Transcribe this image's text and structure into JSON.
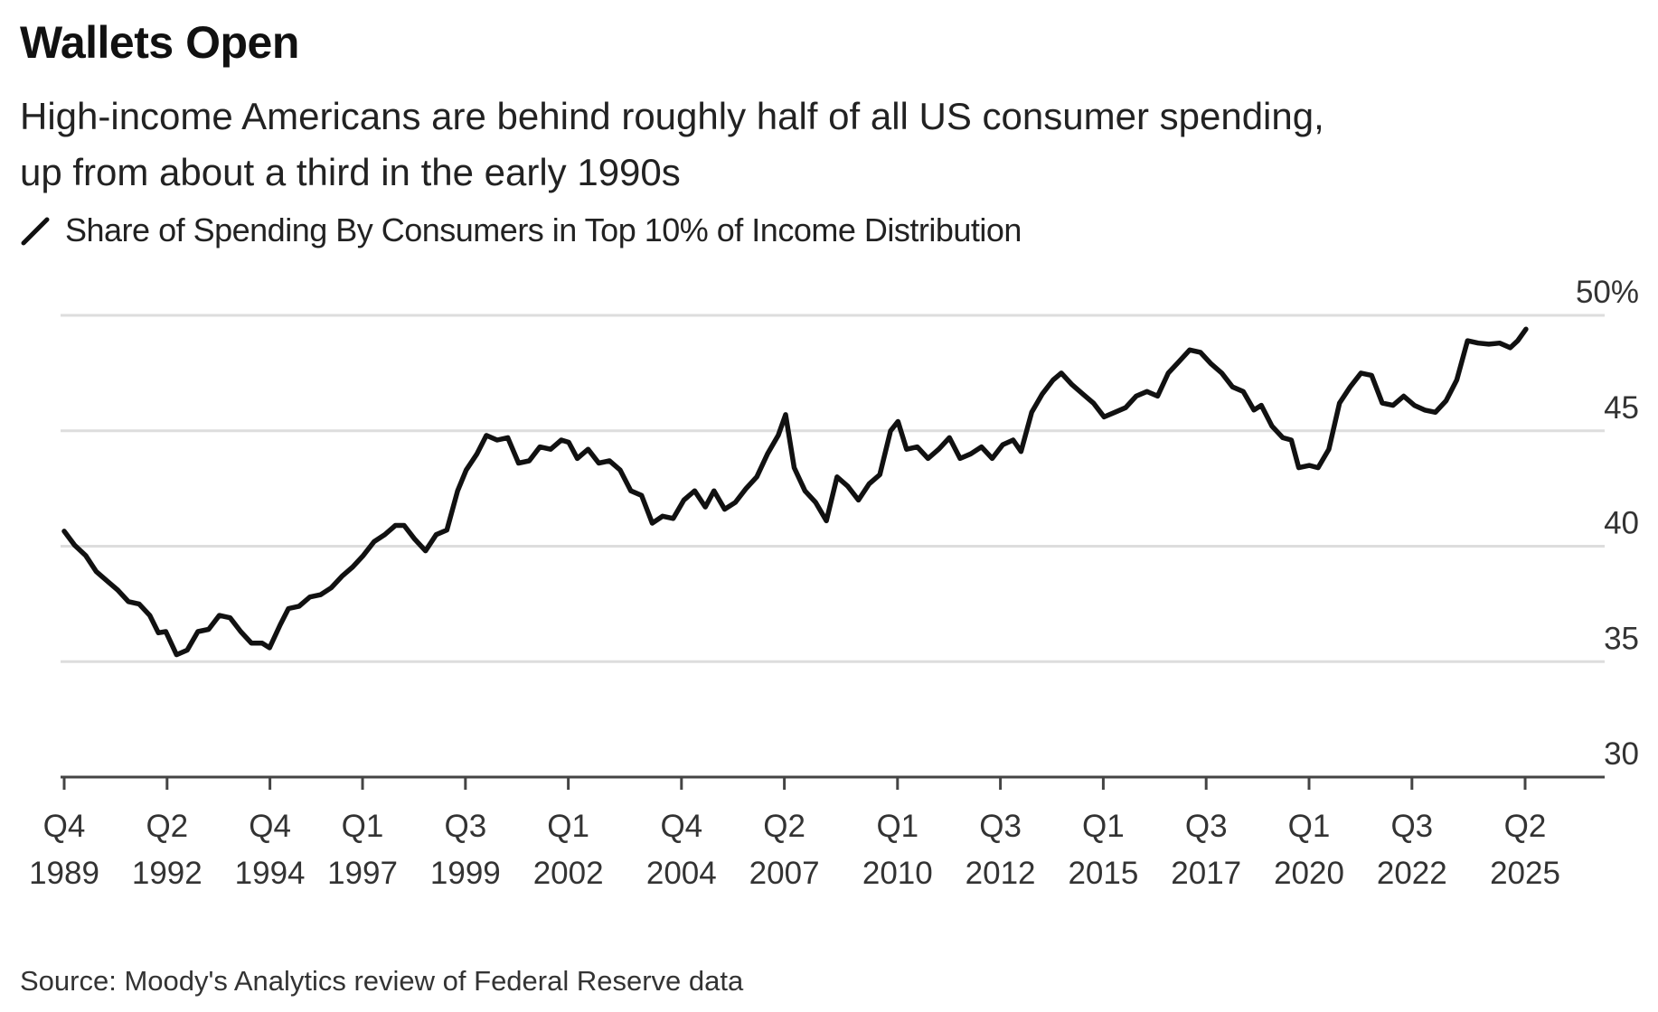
{
  "chart_data": {
    "type": "line",
    "title": "Wallets Open",
    "subtitle_lines": [
      "High-income Americans are behind roughly half of all US consumer spending,",
      "up from about a third in the early 1990s"
    ],
    "legend": [
      "Share of Spending By Consumers in Top 10% of Income Distribution"
    ],
    "source": "Source: Moody's Analytics review of Federal Reserve data",
    "xlabel": "",
    "ylabel": "",
    "ylim": [
      30,
      50
    ],
    "xlim": [
      1989.75,
      2025.25
    ],
    "grid": true,
    "y_ticks": [
      {
        "value": 50,
        "label": "50%"
      },
      {
        "value": 45,
        "label": "45"
      },
      {
        "value": 40,
        "label": "40"
      },
      {
        "value": 35,
        "label": "35"
      },
      {
        "value": 30,
        "label": "30"
      }
    ],
    "x_ticks": [
      {
        "value": 1989.75,
        "q": "Q4",
        "year": "1989"
      },
      {
        "value": 1992.25,
        "q": "Q2",
        "year": "1992"
      },
      {
        "value": 1994.75,
        "q": "Q4",
        "year": "1994"
      },
      {
        "value": 1997.0,
        "q": "Q1",
        "year": "1997"
      },
      {
        "value": 1999.5,
        "q": "Q3",
        "year": "1999"
      },
      {
        "value": 2002.0,
        "q": "Q1",
        "year": "2002"
      },
      {
        "value": 2004.75,
        "q": "Q4",
        "year": "2004"
      },
      {
        "value": 2007.25,
        "q": "Q2",
        "year": "2007"
      },
      {
        "value": 2010.0,
        "q": "Q1",
        "year": "2010"
      },
      {
        "value": 2012.5,
        "q": "Q3",
        "year": "2012"
      },
      {
        "value": 2015.0,
        "q": "Q1",
        "year": "2015"
      },
      {
        "value": 2017.5,
        "q": "Q3",
        "year": "2017"
      },
      {
        "value": 2020.0,
        "q": "Q1",
        "year": "2020"
      },
      {
        "value": 2022.5,
        "q": "Q3",
        "year": "2022"
      },
      {
        "value": 2025.25,
        "q": "Q2",
        "year": "2025"
      }
    ],
    "series": [
      {
        "name": "Share of Spending By Consumers in Top 10% of Income Distribution",
        "color": "#111111",
        "x": [
          1989.75,
          1990.0,
          1990.27,
          1990.53,
          1990.79,
          1991.05,
          1991.31,
          1991.57,
          1991.83,
          1992.04,
          1992.22,
          1992.48,
          1992.74,
          1993.0,
          1993.26,
          1993.52,
          1993.78,
          1994.04,
          1994.3,
          1994.56,
          1994.74,
          1995.0,
          1995.2,
          1995.46,
          1995.72,
          1995.98,
          1996.24,
          1996.5,
          1996.76,
          1997.02,
          1997.28,
          1997.54,
          1997.8,
          1998.01,
          1998.27,
          1998.53,
          1998.79,
          1999.05,
          1999.31,
          1999.52,
          1999.78,
          2000.01,
          2000.27,
          2000.53,
          2000.79,
          2001.05,
          2001.31,
          2001.57,
          2001.83,
          2002.01,
          2002.22,
          2002.48,
          2002.74,
          2003.0,
          2003.26,
          2003.52,
          2003.78,
          2004.04,
          2004.29,
          2004.55,
          2004.81,
          2005.07,
          2005.33,
          2005.54,
          2005.8,
          2006.06,
          2006.32,
          2006.58,
          2006.84,
          2007.1,
          2007.28,
          2007.49,
          2007.75,
          2008.01,
          2008.27,
          2008.53,
          2008.79,
          2009.05,
          2009.31,
          2009.57,
          2009.83,
          2010.01,
          2010.22,
          2010.48,
          2010.74,
          2011.0,
          2011.26,
          2011.52,
          2011.78,
          2012.04,
          2012.3,
          2012.56,
          2012.81,
          2013.0,
          2013.26,
          2013.52,
          2013.78,
          2013.98,
          2014.24,
          2014.5,
          2014.76,
          2015.02,
          2015.28,
          2015.54,
          2015.8,
          2016.06,
          2016.32,
          2016.58,
          2016.84,
          2017.1,
          2017.36,
          2017.62,
          2017.88,
          2018.14,
          2018.4,
          2018.66,
          2018.84,
          2019.1,
          2019.36,
          2019.57,
          2019.75,
          2020.01,
          2020.22,
          2020.48,
          2020.74,
          2021.0,
          2021.26,
          2021.52,
          2021.78,
          2022.04,
          2022.3,
          2022.56,
          2022.81,
          2023.07,
          2023.33,
          2023.59,
          2023.85,
          2024.11,
          2024.37,
          2024.63,
          2024.89,
          2025.07,
          2025.27
        ],
        "y": [
          40.65,
          40.05,
          39.6,
          38.9,
          38.5,
          38.1,
          37.6,
          37.5,
          37.0,
          36.25,
          36.3,
          35.3,
          35.5,
          36.3,
          36.4,
          37.0,
          36.9,
          36.3,
          35.8,
          35.8,
          35.6,
          36.6,
          37.3,
          37.4,
          37.8,
          37.9,
          38.2,
          38.7,
          39.1,
          39.6,
          40.2,
          40.5,
          40.9,
          40.9,
          40.3,
          39.8,
          40.5,
          40.7,
          42.4,
          43.3,
          44.0,
          44.8,
          44.6,
          44.7,
          43.6,
          43.7,
          44.3,
          44.2,
          44.6,
          44.5,
          43.8,
          44.2,
          43.6,
          43.7,
          43.3,
          42.4,
          42.2,
          41.0,
          41.3,
          41.2,
          42.0,
          42.4,
          41.7,
          42.4,
          41.6,
          41.9,
          42.5,
          43.0,
          44.0,
          44.8,
          45.7,
          43.4,
          42.4,
          41.9,
          41.1,
          43.0,
          42.6,
          42.0,
          42.7,
          43.1,
          45.0,
          45.4,
          44.2,
          44.3,
          43.8,
          44.2,
          44.7,
          43.8,
          44.0,
          44.3,
          43.8,
          44.4,
          44.6,
          44.1,
          45.8,
          46.6,
          47.2,
          47.5,
          47.0,
          46.6,
          46.2,
          45.6,
          45.8,
          46.0,
          46.5,
          46.7,
          46.5,
          47.5,
          48.0,
          48.5,
          48.4,
          47.9,
          47.5,
          46.9,
          46.7,
          45.9,
          46.1,
          45.2,
          44.7,
          44.6,
          43.4,
          43.5,
          43.4,
          44.2,
          46.2,
          46.9,
          47.5,
          47.4,
          46.2,
          46.1,
          46.5,
          46.1,
          45.9,
          45.8,
          46.3,
          47.2,
          48.9,
          48.8,
          48.75,
          48.8,
          48.6,
          48.9,
          49.4
        ]
      }
    ]
  }
}
